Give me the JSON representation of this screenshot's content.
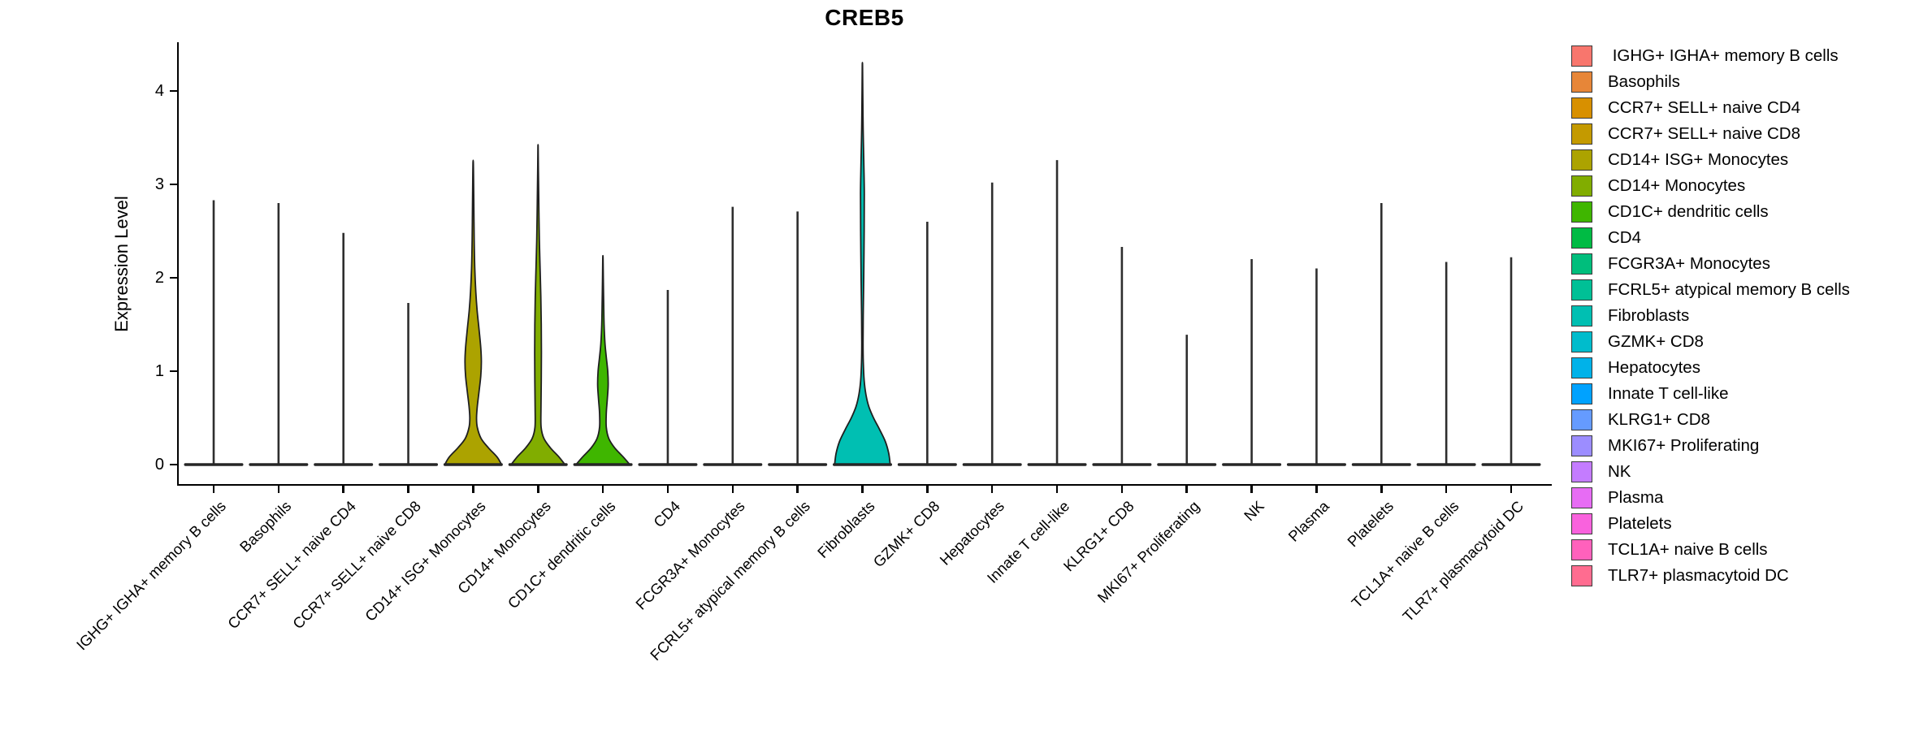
{
  "chart_data": {
    "type": "violin",
    "title": "CREB5",
    "ylabel": "Expression Level",
    "xlabel": "",
    "yticks": [
      0,
      1,
      2,
      3,
      4
    ],
    "ylim": [
      0,
      4.5
    ],
    "grid": false,
    "legend_position": "right",
    "categories": [
      "IGHG+ IGHA+ memory B cells",
      "Basophils",
      "CCR7+ SELL+ naive CD4",
      "CCR7+ SELL+ naive CD8",
      "CD14+ ISG+ Monocytes",
      "CD14+ Monocytes",
      "CD1C+ dendritic cells",
      "CD4",
      "FCGR3A+ Monocytes",
      "FCRL5+ atypical memory B cells",
      "Fibroblasts",
      "GZMK+ CD8",
      "Hepatocytes",
      "Innate T cell-like",
      "KLRG1+ CD8",
      "MKI67+ Proliferating",
      "NK",
      "Plasma",
      "Platelets",
      "TCL1A+ naive B cells",
      "TLR7+ plasmacytoid DC"
    ],
    "violins": [
      {
        "label": "IGHG+ IGHA+ memory B cells",
        "color": "#F8766D",
        "max_expression": 2.83,
        "shape": "spike"
      },
      {
        "label": "Basophils",
        "color": "#E78638",
        "max_expression": 2.8,
        "shape": "spike"
      },
      {
        "label": "CCR7+ SELL+ naive CD4",
        "color": "#D89000",
        "max_expression": 2.48,
        "shape": "spike"
      },
      {
        "label": "CCR7+ SELL+ naive CD8",
        "color": "#C49A00",
        "max_expression": 1.73,
        "shape": "spike"
      },
      {
        "label": "CD14+ ISG+ Monocytes",
        "color": "#ACA300",
        "max_expression": 3.24,
        "shape": "violin",
        "profile": [
          [
            0,
            0.97
          ],
          [
            0.08,
            0.82
          ],
          [
            0.18,
            0.52
          ],
          [
            0.28,
            0.27
          ],
          [
            0.4,
            0.14
          ],
          [
            0.5,
            0.115
          ],
          [
            0.62,
            0.14
          ],
          [
            0.78,
            0.2
          ],
          [
            0.95,
            0.26
          ],
          [
            1.1,
            0.28
          ],
          [
            1.25,
            0.26
          ],
          [
            1.45,
            0.2
          ],
          [
            1.65,
            0.135
          ],
          [
            1.85,
            0.09
          ],
          [
            2.1,
            0.055
          ],
          [
            2.4,
            0.035
          ],
          [
            2.8,
            0.022
          ],
          [
            3.1,
            0.012
          ],
          [
            3.24,
            0.005
          ]
        ]
      },
      {
        "label": "CD14+ Monocytes",
        "color": "#81AD00",
        "max_expression": 3.4,
        "shape": "violin",
        "profile": [
          [
            0,
            0.92
          ],
          [
            0.08,
            0.72
          ],
          [
            0.18,
            0.42
          ],
          [
            0.28,
            0.2
          ],
          [
            0.4,
            0.105
          ],
          [
            0.6,
            0.1
          ],
          [
            0.9,
            0.11
          ],
          [
            1.2,
            0.115
          ],
          [
            1.5,
            0.11
          ],
          [
            1.8,
            0.095
          ],
          [
            2.1,
            0.07
          ],
          [
            2.4,
            0.045
          ],
          [
            2.7,
            0.03
          ],
          [
            3.0,
            0.018
          ],
          [
            3.2,
            0.01
          ],
          [
            3.4,
            0.004
          ]
        ]
      },
      {
        "label": "CD1C+ dendritic cells",
        "color": "#3FB600",
        "max_expression": 2.21,
        "shape": "violin",
        "profile": [
          [
            0,
            0.92
          ],
          [
            0.08,
            0.7
          ],
          [
            0.18,
            0.4
          ],
          [
            0.28,
            0.2
          ],
          [
            0.4,
            0.115
          ],
          [
            0.55,
            0.115
          ],
          [
            0.7,
            0.15
          ],
          [
            0.85,
            0.18
          ],
          [
            1.0,
            0.165
          ],
          [
            1.15,
            0.115
          ],
          [
            1.3,
            0.07
          ],
          [
            1.5,
            0.04
          ],
          [
            1.75,
            0.025
          ],
          [
            2.0,
            0.013
          ],
          [
            2.21,
            0.005
          ]
        ]
      },
      {
        "label": "CD4",
        "color": "#00BB44",
        "max_expression": 1.87,
        "shape": "spike"
      },
      {
        "label": "FCGR3A+ Monocytes",
        "color": "#00BE7C",
        "max_expression": 2.76,
        "shape": "spike"
      },
      {
        "label": "FCRL5+ atypical memory B cells",
        "color": "#00C096",
        "max_expression": 2.71,
        "shape": "spike"
      },
      {
        "label": "Fibroblasts",
        "color": "#00BFB2",
        "max_expression": 4.27,
        "shape": "violin",
        "profile": [
          [
            0,
            0.95
          ],
          [
            0.12,
            0.9
          ],
          [
            0.25,
            0.78
          ],
          [
            0.38,
            0.58
          ],
          [
            0.5,
            0.38
          ],
          [
            0.62,
            0.22
          ],
          [
            0.75,
            0.12
          ],
          [
            0.9,
            0.06
          ],
          [
            1.1,
            0.03
          ],
          [
            1.3,
            0.022
          ],
          [
            1.6,
            0.028
          ],
          [
            2.0,
            0.045
          ],
          [
            2.5,
            0.06
          ],
          [
            2.9,
            0.065
          ],
          [
            3.2,
            0.05
          ],
          [
            3.6,
            0.025
          ],
          [
            4.0,
            0.012
          ],
          [
            4.27,
            0.005
          ]
        ]
      },
      {
        "label": "GZMK+ CD8",
        "color": "#00BCCC",
        "max_expression": 2.6,
        "shape": "spike"
      },
      {
        "label": "Hepatocytes",
        "color": "#00B2E9",
        "max_expression": 3.02,
        "shape": "spike"
      },
      {
        "label": "Innate T cell-like",
        "color": "#00A2FF",
        "max_expression": 3.26,
        "shape": "spike"
      },
      {
        "label": "KLRG1+ CD8",
        "color": "#659BFF",
        "max_expression": 2.33,
        "shape": "spike"
      },
      {
        "label": "MKI67+ Proliferating",
        "color": "#9C8DFF",
        "max_expression": 1.39,
        "shape": "spike"
      },
      {
        "label": "NK",
        "color": "#C47CFF",
        "max_expression": 2.2,
        "shape": "spike"
      },
      {
        "label": "Plasma",
        "color": "#E76CF4",
        "max_expression": 2.1,
        "shape": "spike"
      },
      {
        "label": "Platelets",
        "color": "#F962DD",
        "max_expression": 2.8,
        "shape": "spike"
      },
      {
        "label": "TCL1A+ naive B cells",
        "color": "#FF61BC",
        "max_expression": 2.17,
        "shape": "spike"
      },
      {
        "label": "TLR7+ plasmacytoid DC",
        "color": "#FF6C90",
        "max_expression": 2.22,
        "shape": "spike"
      }
    ],
    "legend": {
      "items": [
        {
          "label": " IGHG+ IGHA+ memory B cells",
          "color": "#F8766D"
        },
        {
          "label": "Basophils",
          "color": "#E78638"
        },
        {
          "label": "CCR7+ SELL+ naive CD4",
          "color": "#D89000"
        },
        {
          "label": "CCR7+ SELL+ naive CD8",
          "color": "#C49A00"
        },
        {
          "label": "CD14+ ISG+ Monocytes",
          "color": "#ACA300"
        },
        {
          "label": "CD14+ Monocytes",
          "color": "#81AD00"
        },
        {
          "label": "CD1C+ dendritic cells",
          "color": "#3FB600"
        },
        {
          "label": "CD4",
          "color": "#00BB44"
        },
        {
          "label": "FCGR3A+ Monocytes",
          "color": "#00BE7C"
        },
        {
          "label": "FCRL5+ atypical memory B cells",
          "color": "#00C096"
        },
        {
          "label": "Fibroblasts",
          "color": "#00BFB2"
        },
        {
          "label": "GZMK+ CD8",
          "color": "#00BCCC"
        },
        {
          "label": "Hepatocytes",
          "color": "#00B2E9"
        },
        {
          "label": "Innate T cell-like",
          "color": "#00A2FF"
        },
        {
          "label": "KLRG1+ CD8",
          "color": "#659BFF"
        },
        {
          "label": "MKI67+ Proliferating",
          "color": "#9C8DFF"
        },
        {
          "label": "NK",
          "color": "#C47CFF"
        },
        {
          "label": "Plasma",
          "color": "#E76CF4"
        },
        {
          "label": "Platelets",
          "color": "#F962DD"
        },
        {
          "label": "TCL1A+ naive B cells",
          "color": "#FF61BC"
        },
        {
          "label": "TLR7+ plasmacytoid DC",
          "color": "#FF6C90"
        }
      ]
    }
  }
}
